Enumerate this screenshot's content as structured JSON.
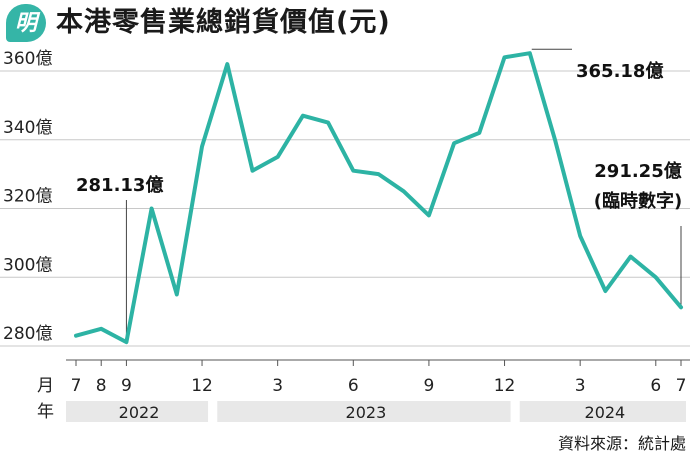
{
  "header": {
    "logo_text": "明",
    "title": "本港零售業總銷貨價值(元)"
  },
  "source_note": "資料來源：統計處",
  "colors": {
    "line": "#2db3a4",
    "badge": "#35b5a7",
    "year_band": "#e8e8e8",
    "grid": "#c8c8c8"
  },
  "chart_data": {
    "type": "line",
    "title": "本港零售業總銷貨價值(元)",
    "y_unit_suffix": "億",
    "ylim": [
      275,
      370
    ],
    "y_ticks": [
      280,
      300,
      320,
      340,
      360
    ],
    "y_tick_labels": [
      "280億",
      "300億",
      "320億",
      "340億",
      "360億"
    ],
    "grid": "horizontal",
    "x_row_label_month": "月",
    "x_row_label_year": "年",
    "months": [
      "2022-07",
      "2022-08",
      "2022-09",
      "2022-10",
      "2022-11",
      "2022-12",
      "2023-01",
      "2023-02",
      "2023-03",
      "2023-04",
      "2023-05",
      "2023-06",
      "2023-07",
      "2023-08",
      "2023-09",
      "2023-10",
      "2023-11",
      "2023-12",
      "2024-01",
      "2024-02",
      "2024-03",
      "2024-04",
      "2024-05",
      "2024-06",
      "2024-07"
    ],
    "values": [
      283.0,
      285.0,
      281.13,
      320.0,
      295.0,
      338.0,
      362.0,
      331.0,
      335.0,
      347.0,
      345.0,
      331.0,
      330.0,
      325.0,
      318.0,
      339.0,
      342.0,
      364.0,
      365.18,
      340.0,
      312.0,
      296.0,
      306.0,
      300.0,
      291.25
    ],
    "x_tick_labels": [
      {
        "month": "2022-07",
        "label": "7"
      },
      {
        "month": "2022-08",
        "label": "8"
      },
      {
        "month": "2022-09",
        "label": "9"
      },
      {
        "month": "2022-12",
        "label": "12"
      },
      {
        "month": "2023-03",
        "label": "3"
      },
      {
        "month": "2023-06",
        "label": "6"
      },
      {
        "month": "2023-09",
        "label": "9"
      },
      {
        "month": "2023-12",
        "label": "12"
      },
      {
        "month": "2024-03",
        "label": "3"
      },
      {
        "month": "2024-06",
        "label": "6"
      },
      {
        "month": "2024-07",
        "label": "7"
      }
    ],
    "year_groups": [
      {
        "label": "2022",
        "start": "2022-07",
        "end": "2022-12"
      },
      {
        "label": "2023",
        "start": "2023-01",
        "end": "2023-12"
      },
      {
        "label": "2024",
        "start": "2024-01",
        "end": "2024-07"
      }
    ],
    "annotations": [
      {
        "month": "2022-09",
        "lines": [
          "281.13億"
        ]
      },
      {
        "month": "2024-01",
        "lines": [
          "365.18億"
        ]
      },
      {
        "month": "2024-07",
        "lines": [
          "291.25億",
          "(臨時數字)"
        ]
      }
    ]
  }
}
